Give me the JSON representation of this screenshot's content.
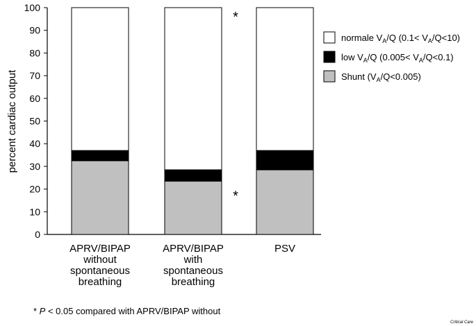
{
  "chart_data": {
    "type": "bar",
    "stacked": true,
    "categories": [
      [
        "APRV/BIPAP",
        "without",
        "spontaneous",
        "breathing"
      ],
      [
        "APRV/BIPAP",
        "with",
        "spontaneous",
        "breathing"
      ],
      [
        "PSV"
      ]
    ],
    "series": [
      {
        "name": "Shunt",
        "label_parts": [
          "Shunt (V",
          "A",
          "/Q<0.005)"
        ],
        "color": "#c0c0c0",
        "values": [
          32.5,
          23.5,
          28.5
        ]
      },
      {
        "name": "low VA/Q",
        "label_parts": [
          "low V",
          "A",
          "/Q (0.005< V",
          "A",
          "/Q<0.1)"
        ],
        "color": "#000000",
        "values": [
          4.5,
          5,
          8.5
        ]
      },
      {
        "name": "normale VA/Q",
        "label_parts": [
          "normale V",
          "A",
          "/Q (0.1< V",
          "A",
          "/Q<10)"
        ],
        "color": "#ffffff",
        "values": [
          63,
          71.5,
          63
        ]
      }
    ],
    "ylabel": "percent cardiac output",
    "xlabel": "",
    "ylim": [
      0,
      100
    ],
    "yticks": [
      "0",
      "10",
      "20",
      "30",
      "40",
      "50",
      "60",
      "70",
      "80",
      "90",
      "100"
    ],
    "annotations": [
      {
        "text": "*",
        "category_index": 1,
        "value": 97
      },
      {
        "text": "*",
        "category_index": 1,
        "value": 18
      }
    ],
    "legend_position": "right",
    "footnote": {
      "prefix": "* ",
      "italic": "P",
      "rest": " < 0.05 compared with APRV/BIPAP without"
    },
    "credit": "Critical Care"
  }
}
